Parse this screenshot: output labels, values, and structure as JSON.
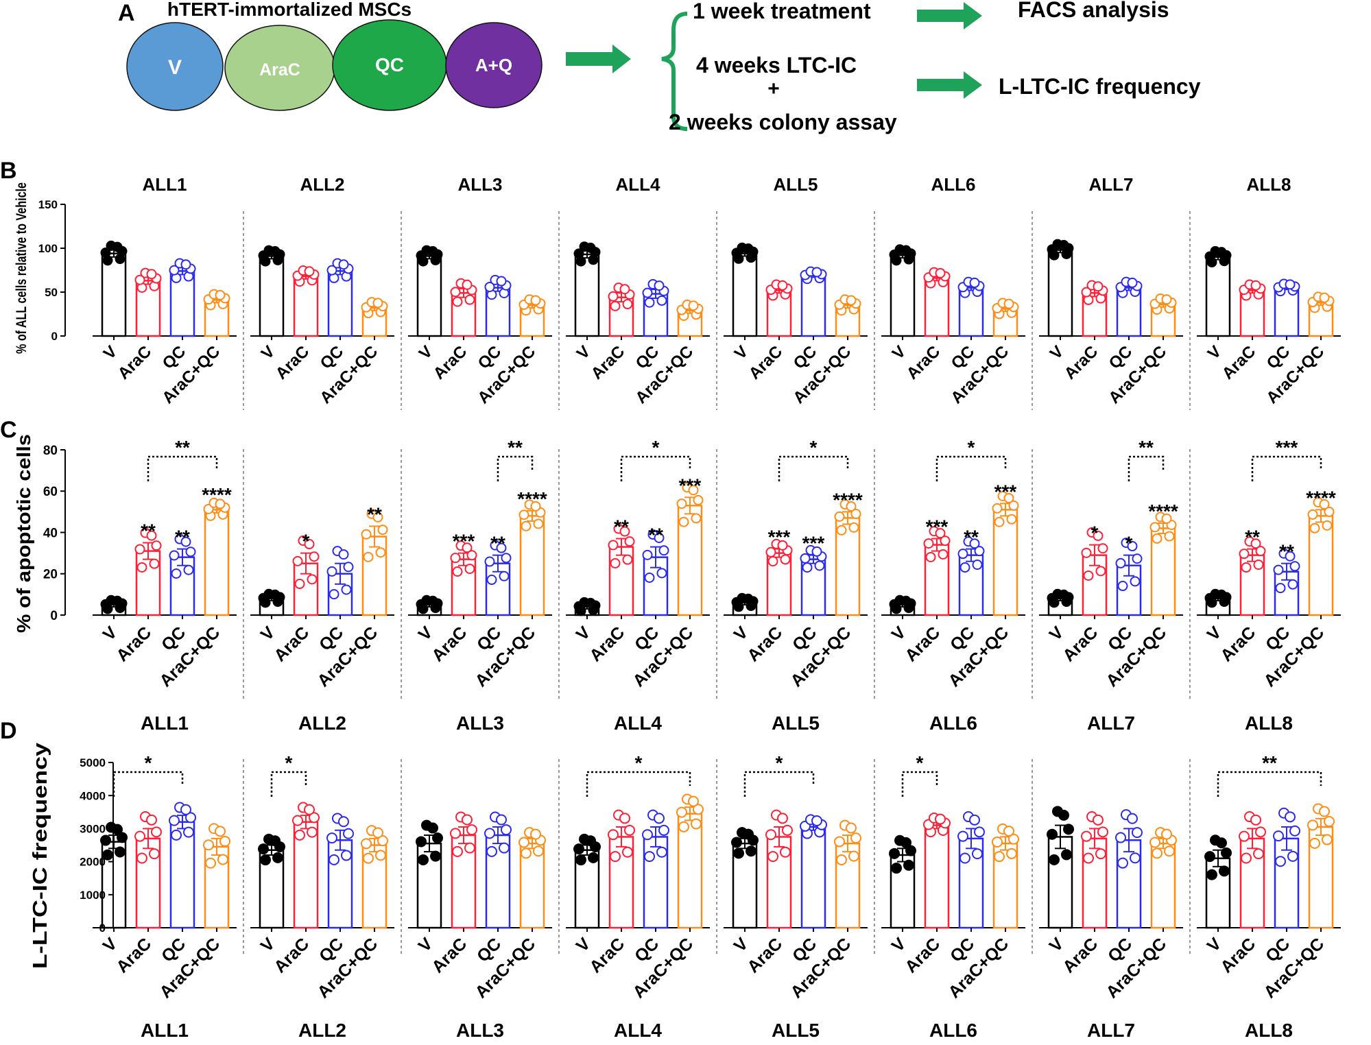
{
  "figure": {
    "panel_a": {
      "label": "A",
      "title": "hTERT-immortalized MSCs",
      "groups": [
        {
          "label": "V",
          "color": "#5b9bd5"
        },
        {
          "label": "AraC",
          "color": "#a9d18e"
        },
        {
          "label": "QC",
          "color": "#1fa849"
        },
        {
          "label": "A+Q",
          "color": "#7030a0"
        }
      ],
      "steps": [
        "1 week treatment",
        "4 weeks LTC-IC",
        "+",
        "2 weeks colony assay"
      ],
      "outcomes": [
        "FACS analysis",
        "L-LTC-IC frequency"
      ],
      "arrow_color": "#1fa35b"
    },
    "colors": {
      "V": "#000000",
      "AraC": "#ff1f36",
      "QC": "#2b2bf0",
      "AraC+QC": "#ff8c14"
    }
  },
  "chart_data": [
    {
      "panel": "B",
      "type": "bar",
      "ylabel": "% of ALL cells relative to Vehicle",
      "ylim": [
        0,
        150
      ],
      "yticks": [
        0,
        50,
        100,
        150
      ],
      "categories": [
        "V",
        "AraC",
        "QC",
        "AraC+QC"
      ],
      "groups": [
        "ALL1",
        "ALL2",
        "ALL3",
        "ALL4",
        "ALL5",
        "ALL6",
        "ALL7",
        "ALL8"
      ],
      "group_label_position": "top",
      "series": [
        {
          "group": "ALL1",
          "values": [
            94,
            63,
            74,
            41
          ],
          "errors": [
            4,
            4,
            4,
            3
          ]
        },
        {
          "group": "ALL2",
          "values": [
            91,
            68,
            74,
            32
          ],
          "errors": [
            3,
            3,
            4,
            3
          ]
        },
        {
          "group": "ALL3",
          "values": [
            91,
            49,
            55,
            35
          ],
          "errors": [
            3,
            5,
            4,
            3
          ]
        },
        {
          "group": "ALL4",
          "values": [
            93,
            44,
            48,
            29
          ],
          "errors": [
            4,
            5,
            5,
            3
          ]
        },
        {
          "group": "ALL5",
          "values": [
            94,
            52,
            69,
            35
          ],
          "errors": [
            3,
            3,
            2,
            3
          ]
        },
        {
          "group": "ALL6",
          "values": [
            92,
            66,
            55,
            31
          ],
          "errors": [
            3,
            3,
            3,
            3
          ]
        },
        {
          "group": "ALL7",
          "values": [
            98,
            49,
            55,
            36
          ],
          "errors": [
            3,
            4,
            3,
            3
          ]
        },
        {
          "group": "ALL8",
          "values": [
            90,
            52,
            55,
            38
          ],
          "errors": [
            3,
            3,
            2,
            3
          ]
        }
      ]
    },
    {
      "panel": "C",
      "type": "bar",
      "ylabel": "% of apoptotic cells",
      "ylim": [
        0,
        80
      ],
      "yticks": [
        0,
        20,
        40,
        60,
        80
      ],
      "categories": [
        "V",
        "AraC",
        "QC",
        "AraC+QC"
      ],
      "groups": [
        "ALL1",
        "ALL2",
        "ALL3",
        "ALL4",
        "ALL5",
        "ALL6",
        "ALL7",
        "ALL8"
      ],
      "group_label_position": "bottom",
      "series": [
        {
          "group": "ALL1",
          "values": [
            5,
            31,
            28,
            51
          ],
          "errors": [
            1,
            4,
            4,
            1.5
          ],
          "stars": [
            "",
            "**",
            "**",
            "****"
          ],
          "bracket": {
            "from": 1,
            "to": 3,
            "label": "**"
          }
        },
        {
          "group": "ALL2",
          "values": [
            8,
            25,
            20,
            38
          ],
          "errors": [
            1,
            5,
            5,
            5
          ],
          "stars": [
            "",
            "*",
            "",
            "**"
          ],
          "bracket": null
        },
        {
          "group": "ALL3",
          "values": [
            5,
            27,
            25,
            48
          ],
          "errors": [
            1,
            3,
            4,
            2.5
          ],
          "stars": [
            "",
            "***",
            "**",
            "****"
          ],
          "bracket": {
            "from": 2,
            "to": 3,
            "label": "**"
          }
        },
        {
          "group": "ALL4",
          "values": [
            4,
            33,
            28,
            53
          ],
          "errors": [
            1,
            4,
            5,
            4
          ],
          "stars": [
            "",
            "**",
            "**",
            "***"
          ],
          "bracket": {
            "from": 1,
            "to": 3,
            "label": "*"
          }
        },
        {
          "group": "ALL5",
          "values": [
            6,
            30,
            27,
            47
          ],
          "errors": [
            1,
            2,
            2,
            3
          ],
          "stars": [
            "",
            "***",
            "***",
            "****"
          ],
          "bracket": {
            "from": 1,
            "to": 3,
            "label": "*"
          }
        },
        {
          "group": "ALL6",
          "values": [
            5,
            34,
            29,
            51
          ],
          "errors": [
            1,
            3,
            3,
            3
          ],
          "stars": [
            "",
            "***",
            "**",
            "***"
          ],
          "bracket": {
            "from": 1,
            "to": 3,
            "label": "*"
          }
        },
        {
          "group": "ALL7",
          "values": [
            8,
            29,
            24,
            42
          ],
          "errors": [
            1,
            5,
            5,
            2.5
          ],
          "stars": [
            "",
            "*",
            "*",
            "****"
          ],
          "bracket": {
            "from": 2,
            "to": 3,
            "label": "**"
          }
        },
        {
          "group": "ALL8",
          "values": [
            8,
            29,
            21,
            48
          ],
          "errors": [
            1,
            3,
            4,
            3
          ],
          "stars": [
            "",
            "**",
            "**",
            "****"
          ],
          "bracket": {
            "from": 1,
            "to": 3,
            "label": "***"
          }
        }
      ]
    },
    {
      "panel": "D",
      "type": "bar",
      "ylabel": "L-LTC-IC frequency",
      "ylim": [
        0,
        5000
      ],
      "yticks": [
        0,
        1000,
        2000,
        3000,
        4000,
        5000
      ],
      "categories": [
        "V",
        "AraC",
        "QC",
        "AraC+QC"
      ],
      "groups": [
        "ALL1",
        "ALL2",
        "ALL3",
        "ALL4",
        "ALL5",
        "ALL6",
        "ALL7",
        "ALL8"
      ],
      "group_label_position": "bottom",
      "series": [
        {
          "group": "ALL1",
          "values": [
            2600,
            2700,
            3200,
            2450
          ],
          "errors": [
            200,
            300,
            200,
            250
          ],
          "bracket": {
            "from": 0,
            "to": 2,
            "label": "*"
          }
        },
        {
          "group": "ALL2",
          "values": [
            2350,
            3200,
            2650,
            2500
          ],
          "errors": [
            150,
            200,
            300,
            200
          ],
          "bracket": {
            "from": 0,
            "to": 1,
            "label": "*"
          }
        },
        {
          "group": "ALL3",
          "values": [
            2550,
            2800,
            2800,
            2550
          ],
          "errors": [
            250,
            250,
            250,
            150
          ],
          "bracket": null
        },
        {
          "group": "ALL4",
          "values": [
            2350,
            2750,
            2750,
            3450
          ],
          "errors": [
            150,
            300,
            300,
            200
          ],
          "bracket": {
            "from": 0,
            "to": 3,
            "label": "*"
          }
        },
        {
          "group": "ALL5",
          "values": [
            2550,
            2750,
            3050,
            2550
          ],
          "errors": [
            150,
            300,
            100,
            250
          ],
          "bracket": {
            "from": 0,
            "to": 2,
            "label": "*"
          }
        },
        {
          "group": "ALL6",
          "values": [
            2200,
            3100,
            2700,
            2550
          ],
          "errors": [
            200,
            100,
            300,
            200
          ],
          "bracket": {
            "from": 0,
            "to": 1,
            "label": "*"
          }
        },
        {
          "group": "ALL7",
          "values": [
            2750,
            2700,
            2650,
            2550
          ],
          "errors": [
            350,
            300,
            350,
            150
          ],
          "bracket": null
        },
        {
          "group": "ALL8",
          "values": [
            2100,
            2700,
            2700,
            3050
          ],
          "errors": [
            250,
            300,
            350,
            250
          ],
          "bracket": {
            "from": 0,
            "to": 3,
            "label": "**"
          }
        }
      ]
    }
  ]
}
